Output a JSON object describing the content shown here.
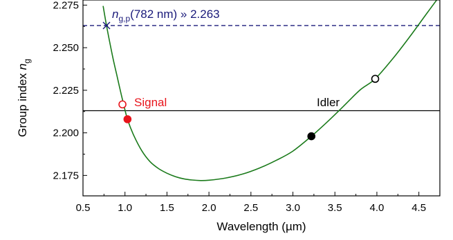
{
  "chart_data": {
    "type": "line",
    "xlabel": "Wavelength (µm)",
    "ylabel_main": "Group index ",
    "ylabel_italic": "n",
    "ylabel_sub": "g",
    "xlim": [
      0.5,
      4.75
    ],
    "ylim": [
      2.163,
      2.278
    ],
    "x_ticks": [
      0.5,
      1.0,
      1.5,
      2.0,
      2.5,
      3.0,
      3.5,
      4.0,
      4.5
    ],
    "x_tick_labels": [
      "0.5",
      "1.0",
      "1.5",
      "2.0",
      "2.5",
      "3.0",
      "3.5",
      "4.0",
      "4.5"
    ],
    "y_ticks": [
      2.175,
      2.2,
      2.225,
      2.25,
      2.275
    ],
    "y_tick_labels": [
      "2.175",
      "2.200",
      "2.225",
      "2.250",
      "2.275"
    ],
    "curve": {
      "color": "#1a7a1a",
      "x": [
        0.74,
        0.78,
        0.85,
        0.9,
        0.97,
        1.03,
        1.1,
        1.2,
        1.3,
        1.4,
        1.5,
        1.6,
        1.7,
        1.8,
        1.9,
        2.0,
        2.2,
        2.4,
        2.6,
        2.8,
        3.0,
        3.22,
        3.4,
        3.6,
        3.8,
        3.98,
        4.2,
        4.4,
        4.6,
        4.75
      ],
      "y": [
        2.2745,
        2.263,
        2.2455,
        2.2345,
        2.2195,
        2.208,
        2.199,
        2.1895,
        2.183,
        2.179,
        2.1763,
        2.1743,
        2.173,
        2.1723,
        2.172,
        2.1722,
        2.1735,
        2.1758,
        2.1793,
        2.1838,
        2.1893,
        2.198,
        2.206,
        2.2155,
        2.2252,
        2.2317,
        2.2442,
        2.257,
        2.2705,
        2.2805
      ]
    },
    "hlines": [
      {
        "name": "pump",
        "y": 2.263,
        "color": "#1a1a7a",
        "style": "dashed"
      },
      {
        "name": "signal-idler",
        "y": 2.213,
        "color": "#000000",
        "style": "solid"
      }
    ],
    "pump_marker": {
      "x": 0.78,
      "y": 2.263,
      "color": "#1a1a7a"
    },
    "points": [
      {
        "x": 0.97,
        "y": 2.2167,
        "fill": "none",
        "stroke": "#e8141b"
      },
      {
        "x": 1.03,
        "y": 2.208,
        "fill": "#e8141b",
        "stroke": "#e8141b"
      },
      {
        "x": 3.22,
        "y": 2.198,
        "fill": "#000000",
        "stroke": "#000000"
      },
      {
        "x": 3.98,
        "y": 2.2317,
        "fill": "none",
        "stroke": "#000000"
      }
    ],
    "annotations": {
      "pump_italic": "n",
      "pump_sub": "g,p",
      "pump_text": "(782 nm) » 2.263",
      "pump_color": "#1a1a7a",
      "signal": "Signal",
      "signal_color": "#e8141b",
      "idler": "Idler",
      "idler_color": "#000000"
    }
  }
}
